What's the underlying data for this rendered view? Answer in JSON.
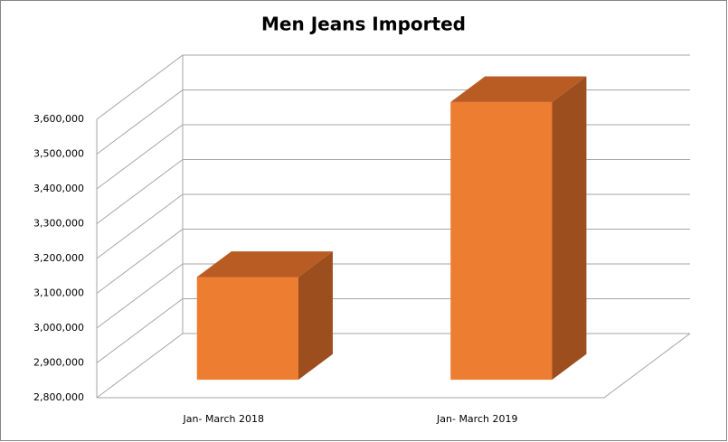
{
  "chart_data": {
    "type": "bar3d",
    "title": "Men Jeans Imported",
    "categories": [
      "Jan- March 2018",
      "Jan- March 2019"
    ],
    "values": [
      3095000,
      3598000
    ],
    "color": "#ED7D31",
    "ylim": [
      2800000,
      3600000
    ],
    "yticks": [
      {
        "value": 2800000,
        "label": "2,800,000"
      },
      {
        "value": 2900000,
        "label": "2,900,000"
      },
      {
        "value": 3000000,
        "label": "3,000,000"
      },
      {
        "value": 3100000,
        "label": "3,100,000"
      },
      {
        "value": 3200000,
        "label": "3,200,000"
      },
      {
        "value": 3300000,
        "label": "3,300,000"
      },
      {
        "value": 3400000,
        "label": "3,400,000"
      },
      {
        "value": 3500000,
        "label": "3,500,000"
      },
      {
        "value": 3600000,
        "label": "3,600,000"
      }
    ],
    "grid": true
  }
}
